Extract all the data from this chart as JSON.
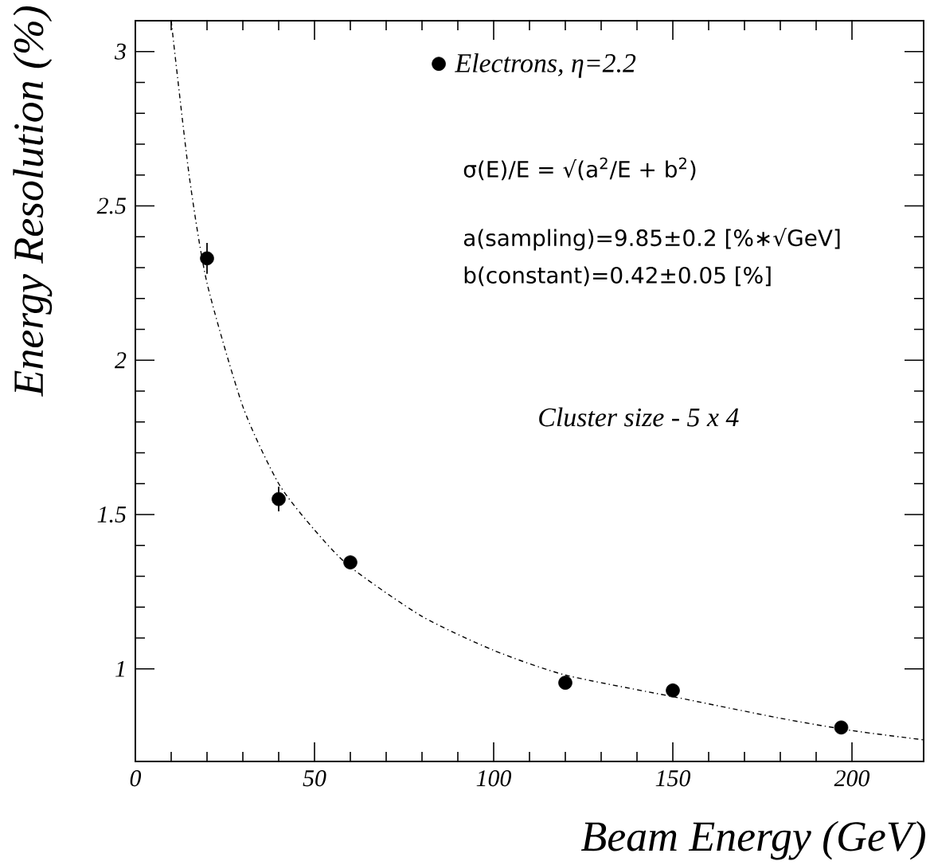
{
  "chart_data": {
    "type": "scatter",
    "xlabel": "Beam Energy (GeV)",
    "ylabel": "Energy Resolution  (%)",
    "xlim": [
      0,
      220
    ],
    "ylim": [
      0.7,
      3.1
    ],
    "xticks": [
      0,
      50,
      100,
      150,
      200
    ],
    "yticks": [
      1,
      1.5,
      2,
      2.5,
      3
    ],
    "legend": "top right",
    "grid": false,
    "series": [
      {
        "name": "Electrons,  η=2.2",
        "color": "#000000",
        "marker": "circle",
        "x": [
          20,
          40,
          60,
          120,
          150,
          197
        ],
        "values": [
          2.33,
          1.55,
          1.345,
          0.955,
          0.93,
          0.81
        ],
        "errors": [
          0.05,
          0.04,
          null,
          null,
          null,
          null
        ]
      },
      {
        "type": "line",
        "color": "#000000",
        "line_style": "dotted",
        "marker": "none",
        "x": [
          10,
          15,
          20,
          30,
          40,
          50,
          60,
          80,
          100,
          120,
          150,
          180,
          200,
          220
        ],
        "values": [
          3.1,
          2.6,
          2.25,
          1.85,
          1.6,
          1.45,
          1.33,
          1.17,
          1.06,
          0.98,
          0.91,
          0.84,
          0.8,
          0.77
        ]
      }
    ],
    "annotations": [
      "σ(E)/E = √(a$^{2}$/E + b$^{2}$)",
      "a(sampling)=9.85±0.2     [%∗√GeV]",
      "b(constant)=0.42±0.05     [%]",
      "*Cluster size - 5 x 4*"
    ]
  }
}
